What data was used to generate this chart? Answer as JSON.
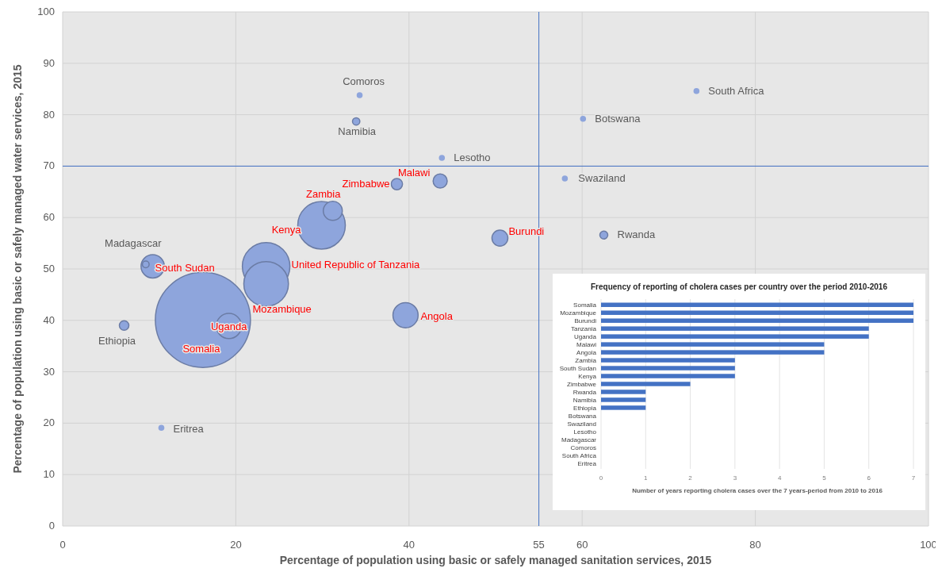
{
  "chart_data": [
    {
      "type": "bubble",
      "xlabel": "Percentage of population using basic or safely managed sanitation services, 2015",
      "ylabel": "Percentage of population using basic or safely managed water services, 2015",
      "xlim": [
        0,
        100
      ],
      "ylim": [
        0,
        100
      ],
      "xticks": [
        0,
        20,
        40,
        60,
        80,
        100
      ],
      "yticks": [
        0,
        10,
        20,
        30,
        40,
        50,
        60,
        70,
        80,
        90,
        100
      ],
      "grid": true,
      "series": [
        {
          "color": "#8ea5dc",
          "x": [
            43.6,
            38.6,
            31.2,
            29.9,
            50.5,
            10.4,
            23.5,
            23.5,
            16.2,
            19.2,
            39.6
          ],
          "values": [
            67.1,
            66.5,
            61.3,
            58.5,
            56.0,
            50.5,
            50.5,
            47.1,
            40.1,
            38.9,
            41.0
          ],
          "sizes": [
            0.022,
            0.014,
            0.04,
            0.25,
            0.028,
            0.06,
            0.25,
            0.22,
            1,
            0.07,
            0.07
          ]
        },
        {
          "color": "#8ea5dc",
          "x": [
            34.3,
            33.9,
            73.2,
            60.1,
            43.8,
            58.0,
            62.5,
            9.6,
            7.1,
            11.4
          ],
          "values": [
            83.8,
            78.7,
            84.6,
            79.2,
            71.6,
            67.6,
            56.6,
            50.9,
            39.0,
            19.1
          ],
          "sizes": [
            0.004,
            0.006,
            0.004,
            0.004,
            0.004,
            0.004,
            0.007,
            0.005,
            0.01,
            0.004
          ]
        }
      ],
      "ref_lines": [
        {
          "axis": "x",
          "value": 55,
          "label": "55",
          "color": "#4472c4"
        },
        {
          "axis": "y",
          "value": 70,
          "color": "#4472c4"
        }
      ],
      "annotations": [
        {
          "text": "Comoros",
          "x": 34.3,
          "y": 83.8
        },
        {
          "text": "Namibia",
          "x": 33.9,
          "y": 78.7
        },
        {
          "text": "South Africa",
          "x": 73.2,
          "y": 84.6
        },
        {
          "text": "Botswana",
          "x": 60.1,
          "y": 79.2
        },
        {
          "text": "Lesotho",
          "x": 43.8,
          "y": 71.6
        },
        {
          "text": "Swaziland",
          "x": 58.0,
          "y": 67.6
        },
        {
          "text": "Rwanda",
          "x": 62.5,
          "y": 56.6
        },
        {
          "text": "Malawi",
          "x": 43.6,
          "y": 67.1
        },
        {
          "text": "Zimbabwe",
          "x": 38.6,
          "y": 66.5
        },
        {
          "text": "Zambia",
          "x": 31.2,
          "y": 61.3
        },
        {
          "text": "Kenya",
          "x": 29.9,
          "y": 58.5
        },
        {
          "text": "Burundi",
          "x": 50.5,
          "y": 56.0
        },
        {
          "text": "Madagascar",
          "x": 9.6,
          "y": 50.9
        },
        {
          "text": "South Sudan",
          "x": 10.4,
          "y": 50.5
        },
        {
          "text": "United Republic of Tanzania",
          "x": 23.5,
          "y": 50.5
        },
        {
          "text": "Mozambique",
          "x": 23.5,
          "y": 47.1
        },
        {
          "text": "Somalia",
          "x": 16.2,
          "y": 40.1
        },
        {
          "text": "Uganda",
          "x": 19.2,
          "y": 38.9
        },
        {
          "text": "Ethiopia",
          "x": 7.1,
          "y": 39.0
        },
        {
          "text": "Angola",
          "x": 39.6,
          "y": 41.0
        },
        {
          "text": "Eritrea",
          "x": 11.4,
          "y": 19.1
        }
      ]
    },
    {
      "type": "bar",
      "orientation": "horizontal",
      "title": "Frequency of reporting of cholera cases per country over the period 2010-2016",
      "xlabel": "Number of years reporting cholera cases over the 7 years-period from 2010 to 2016",
      "categories": [
        "Somalia",
        "Mozambique",
        "Burundi",
        "Tanzania",
        "Uganda",
        "Malawi",
        "Angola",
        "Zambia",
        "South Sudan",
        "Kenya",
        "Zimbabwe",
        "Rwanda",
        "Namibia",
        "Ethiopia",
        "Botswana",
        "Swaziland",
        "Lesotho",
        "Madagascar",
        "Comoros",
        "South Africa",
        "Eritrea"
      ],
      "values": [
        7,
        7,
        7,
        6,
        6,
        5,
        5,
        3,
        3,
        3,
        2,
        1,
        1,
        1,
        0,
        0,
        0,
        0,
        0,
        0,
        0
      ],
      "color": "#4472c4",
      "xlim": [
        0,
        7
      ],
      "xticks": [
        0,
        1,
        2,
        3,
        4,
        5,
        6,
        7
      ],
      "grid": "x"
    }
  ]
}
